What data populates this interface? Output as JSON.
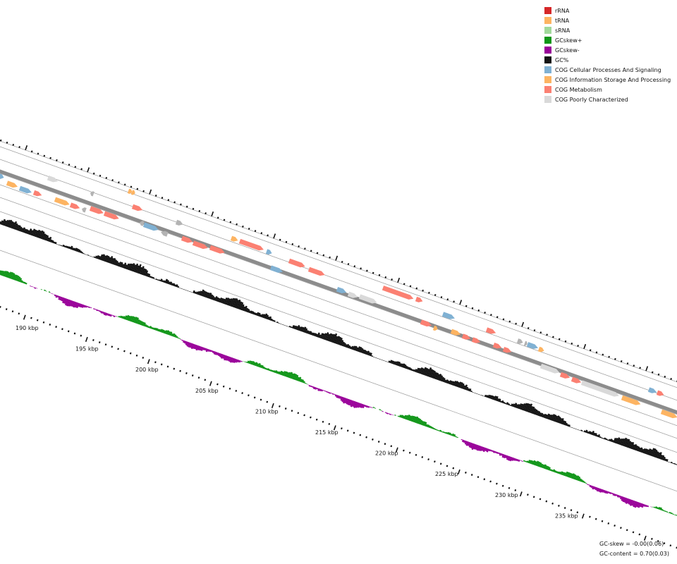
{
  "legend": {
    "items": [
      {
        "label": "rRNA",
        "color": "#d62728"
      },
      {
        "label": "tRNA",
        "color": "#fdb462"
      },
      {
        "label": "sRNA",
        "color": "#a1d99b"
      },
      {
        "label": "GCskew+",
        "color": "#109618"
      },
      {
        "label": "GCskew-",
        "color": "#990099"
      },
      {
        "label": "GC%",
        "color": "#141414"
      },
      {
        "label": "COG Cellular Processes And Signaling",
        "color": "#80b1d3"
      },
      {
        "label": "COG Information Storage And Processing",
        "color": "#fdb462"
      },
      {
        "label": "COG Metabolism",
        "color": "#fb8072"
      },
      {
        "label": "COG Poorly Characterized",
        "color": "#d9d9d9"
      }
    ]
  },
  "ruler": {
    "labels": [
      "190 kbp",
      "195 kbp",
      "200 kbp",
      "205 kbp",
      "210 kbp",
      "215 kbp",
      "220 kbp",
      "225 kbp",
      "230 kbp",
      "235 kbp"
    ]
  },
  "stats": {
    "gc_skew": "GC-skew = -0.00(0.06)",
    "gc_content": "GC-content = 0.70(0.03)"
  },
  "colors": {
    "backbone": "#8c8c8c",
    "track_line": "#999999",
    "hypothetical": "#b3b3b3"
  }
}
